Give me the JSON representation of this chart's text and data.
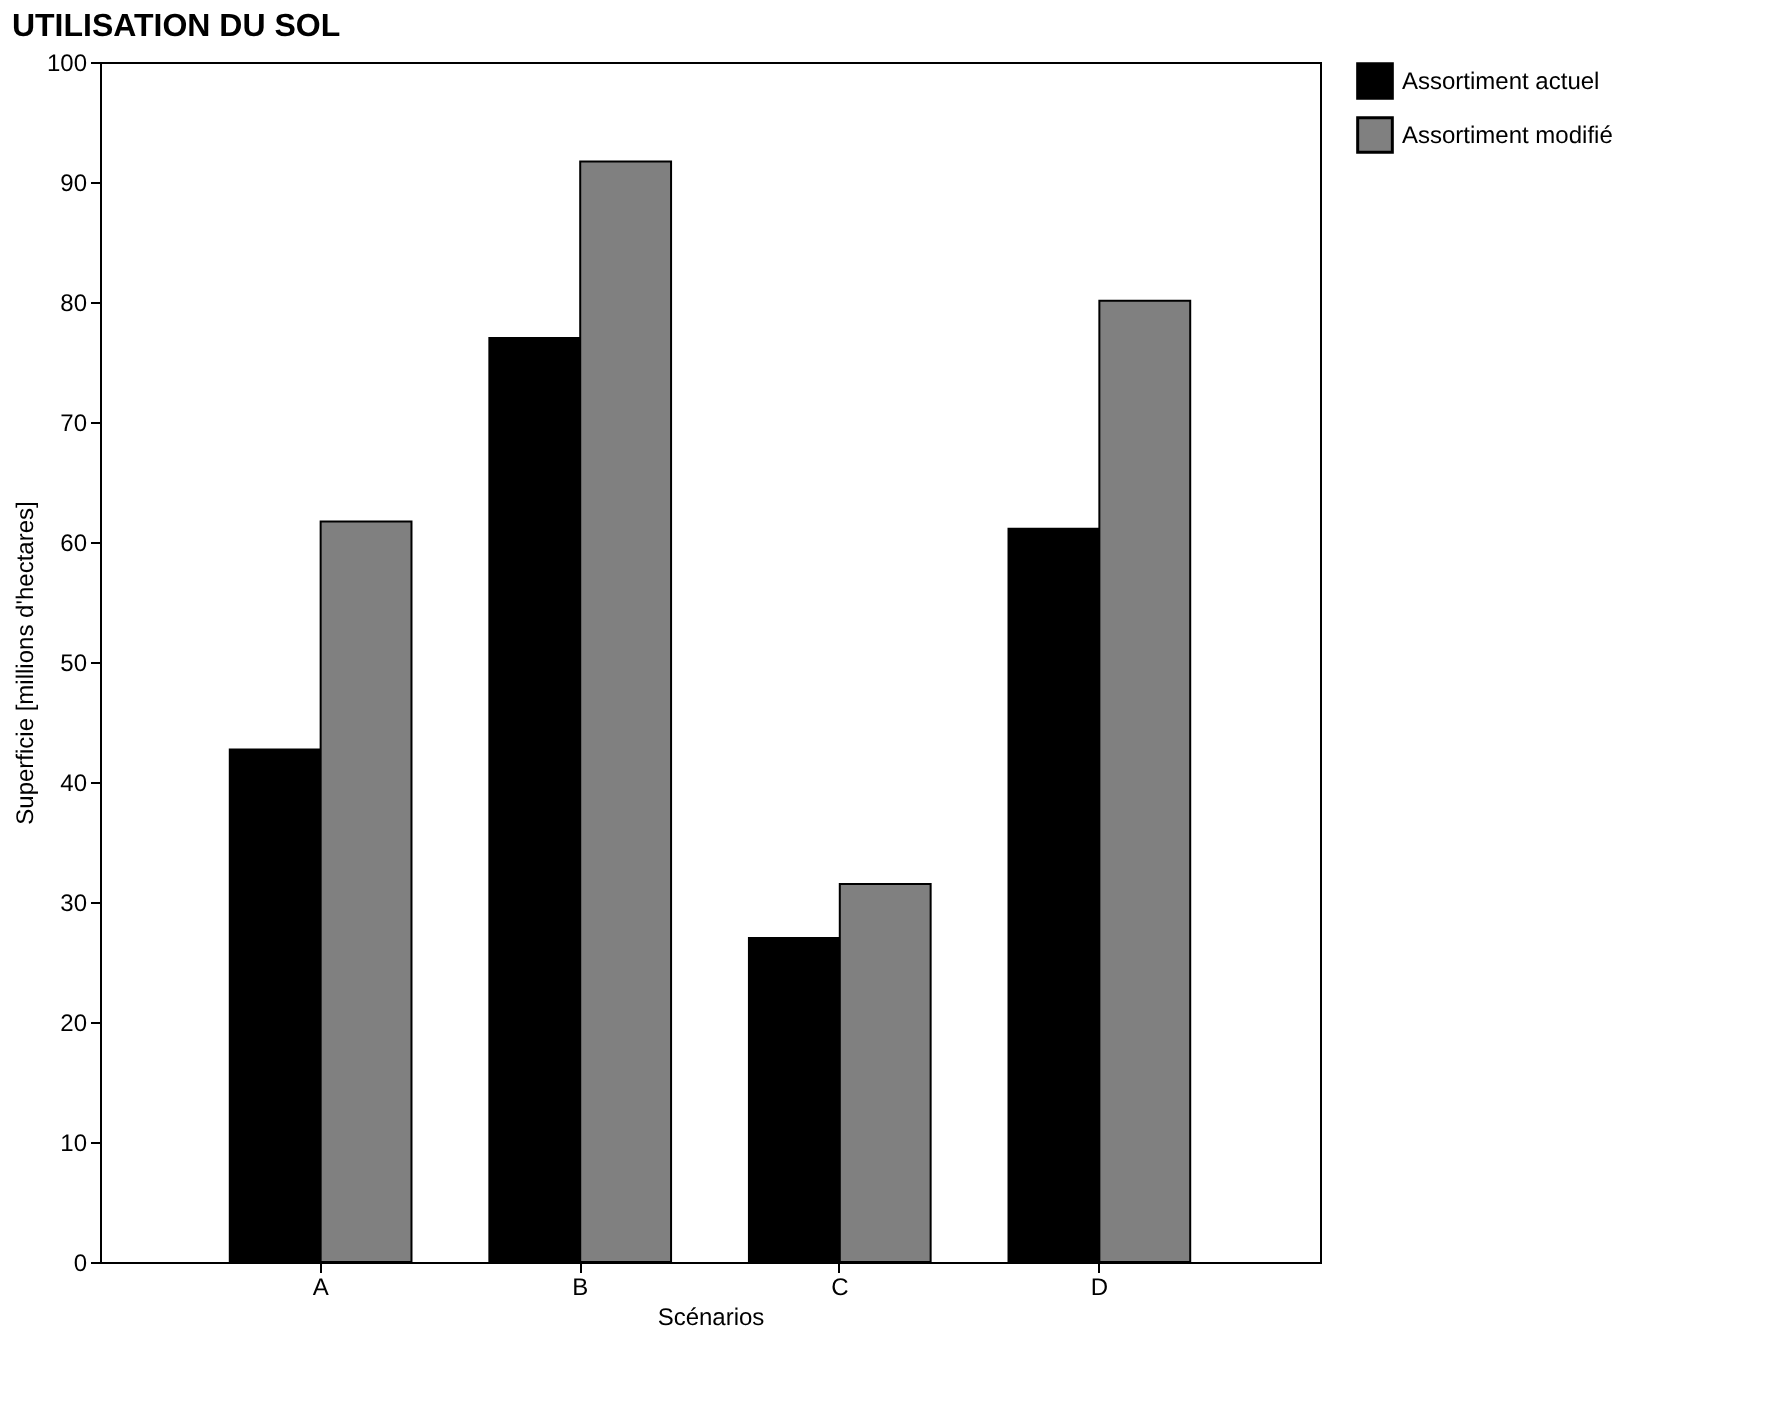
{
  "chart_data": {
    "type": "bar",
    "title": "UTILISATION DU SOL",
    "xlabel": "Scénarios",
    "ylabel": "Superficie [millions d'hectares]",
    "categories": [
      "A",
      "B",
      "C",
      "D"
    ],
    "series": [
      {
        "name": "Assortiment actuel",
        "color": "#000000",
        "values": [
          42.7,
          77,
          27,
          61.1
        ]
      },
      {
        "name": "Assortiment modifié",
        "color": "#808080",
        "values": [
          61.7,
          91.7,
          31.5,
          80.1
        ]
      }
    ],
    "ylim": [
      0,
      100
    ],
    "yticks": [
      0,
      10,
      20,
      30,
      40,
      50,
      60,
      70,
      80,
      90,
      100
    ],
    "grid": false,
    "legend": "top right"
  }
}
